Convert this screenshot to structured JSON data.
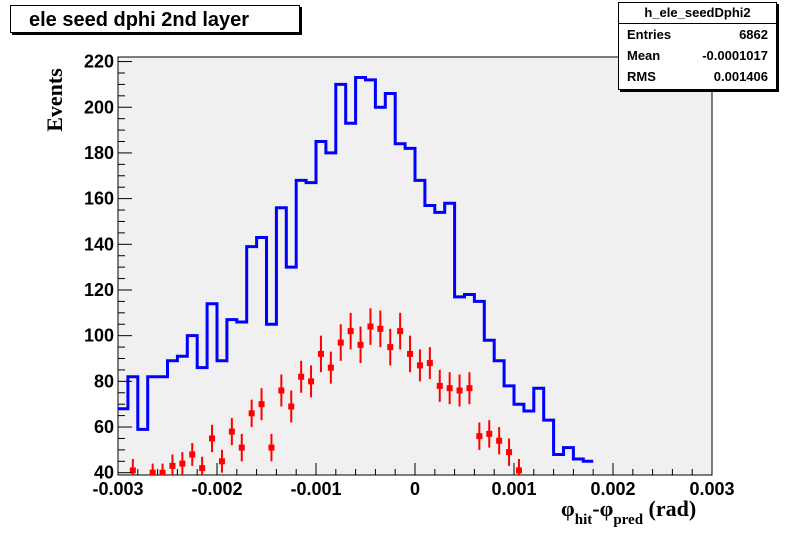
{
  "chart_data": {
    "type": "histogram",
    "title": "ele seed dphi 2nd layer",
    "ylabel": "Events",
    "xlabel_parts": {
      "phi1": "φ",
      "sub1": "hit",
      "mid": "-",
      "phi2": "φ",
      "sub2": "pred",
      "unit": " (rad)"
    },
    "xlim": [
      -0.003,
      0.003
    ],
    "ylim": [
      39,
      222
    ],
    "x_ticks": [
      -0.003,
      -0.002,
      -0.001,
      0,
      0.001,
      0.002,
      0.003
    ],
    "x_tick_labels": [
      "-0.003",
      "-0.002",
      "-0.001",
      "0",
      "0.001",
      "0.002",
      "0.003"
    ],
    "y_ticks": [
      40,
      60,
      80,
      100,
      120,
      140,
      160,
      180,
      200,
      220
    ],
    "y_tick_labels": [
      "40",
      "60",
      "80",
      "100",
      "120",
      "140",
      "160",
      "180",
      "200",
      "220"
    ],
    "bin_width": 0.0001,
    "series": [
      {
        "kind": "step-histogram",
        "color": "#0000ff",
        "values": [
          68,
          82,
          59,
          82,
          82,
          89,
          91,
          100,
          86,
          114,
          89,
          107,
          106,
          139,
          143,
          105,
          156,
          130,
          168,
          167,
          185,
          180,
          210,
          193,
          213,
          212,
          200,
          206,
          184,
          182,
          168,
          157,
          154,
          158,
          117,
          118,
          115,
          98,
          89,
          78,
          70,
          67,
          77,
          63,
          48,
          51,
          46,
          45
        ]
      },
      {
        "kind": "error-points",
        "color": "#ff0000",
        "points": [
          {
            "x": -0.00285,
            "y": 41,
            "err": 5
          },
          {
            "x": -0.00265,
            "y": 40,
            "err": 4
          },
          {
            "x": -0.00255,
            "y": 40,
            "err": 4
          },
          {
            "x": -0.00245,
            "y": 43,
            "err": 5
          },
          {
            "x": -0.00235,
            "y": 44,
            "err": 5
          },
          {
            "x": -0.00225,
            "y": 48,
            "err": 5
          },
          {
            "x": -0.00215,
            "y": 42,
            "err": 5
          },
          {
            "x": -0.00205,
            "y": 55,
            "err": 6
          },
          {
            "x": -0.00195,
            "y": 45,
            "err": 5
          },
          {
            "x": -0.00185,
            "y": 58,
            "err": 6
          },
          {
            "x": -0.00175,
            "y": 51,
            "err": 6
          },
          {
            "x": -0.00165,
            "y": 66,
            "err": 6
          },
          {
            "x": -0.00155,
            "y": 70,
            "err": 7
          },
          {
            "x": -0.00145,
            "y": 51,
            "err": 6
          },
          {
            "x": -0.00135,
            "y": 76,
            "err": 7
          },
          {
            "x": -0.00125,
            "y": 69,
            "err": 7
          },
          {
            "x": -0.00115,
            "y": 82,
            "err": 7
          },
          {
            "x": -0.00105,
            "y": 80,
            "err": 7
          },
          {
            "x": -0.00095,
            "y": 92,
            "err": 8
          },
          {
            "x": -0.00085,
            "y": 86,
            "err": 7
          },
          {
            "x": -0.00075,
            "y": 97,
            "err": 8
          },
          {
            "x": -0.00065,
            "y": 102,
            "err": 8
          },
          {
            "x": -0.00055,
            "y": 96,
            "err": 8
          },
          {
            "x": -0.00045,
            "y": 104,
            "err": 8
          },
          {
            "x": -0.00035,
            "y": 103,
            "err": 8
          },
          {
            "x": -0.00025,
            "y": 95,
            "err": 8
          },
          {
            "x": -0.00015,
            "y": 102,
            "err": 8
          },
          {
            "x": -5e-05,
            "y": 92,
            "err": 8
          },
          {
            "x": 5e-05,
            "y": 87,
            "err": 7
          },
          {
            "x": 0.00015,
            "y": 88,
            "err": 7
          },
          {
            "x": 0.00025,
            "y": 78,
            "err": 7
          },
          {
            "x": 0.00035,
            "y": 77,
            "err": 7
          },
          {
            "x": 0.00045,
            "y": 76,
            "err": 7
          },
          {
            "x": 0.00055,
            "y": 77,
            "err": 7
          },
          {
            "x": 0.00065,
            "y": 56,
            "err": 6
          },
          {
            "x": 0.00075,
            "y": 57,
            "err": 6
          },
          {
            "x": 0.00085,
            "y": 54,
            "err": 6
          },
          {
            "x": 0.00095,
            "y": 49,
            "err": 6
          },
          {
            "x": 0.00105,
            "y": 41,
            "err": 5
          }
        ]
      }
    ],
    "stats": {
      "name": "h_ele_seedDphi2",
      "rows": [
        {
          "label": "Entries",
          "value": "6862"
        },
        {
          "label": "Mean",
          "value": "-0.0001017"
        },
        {
          "label": "RMS",
          "value": "0.001406"
        }
      ]
    },
    "frame_fill": "#f0f0f0"
  }
}
